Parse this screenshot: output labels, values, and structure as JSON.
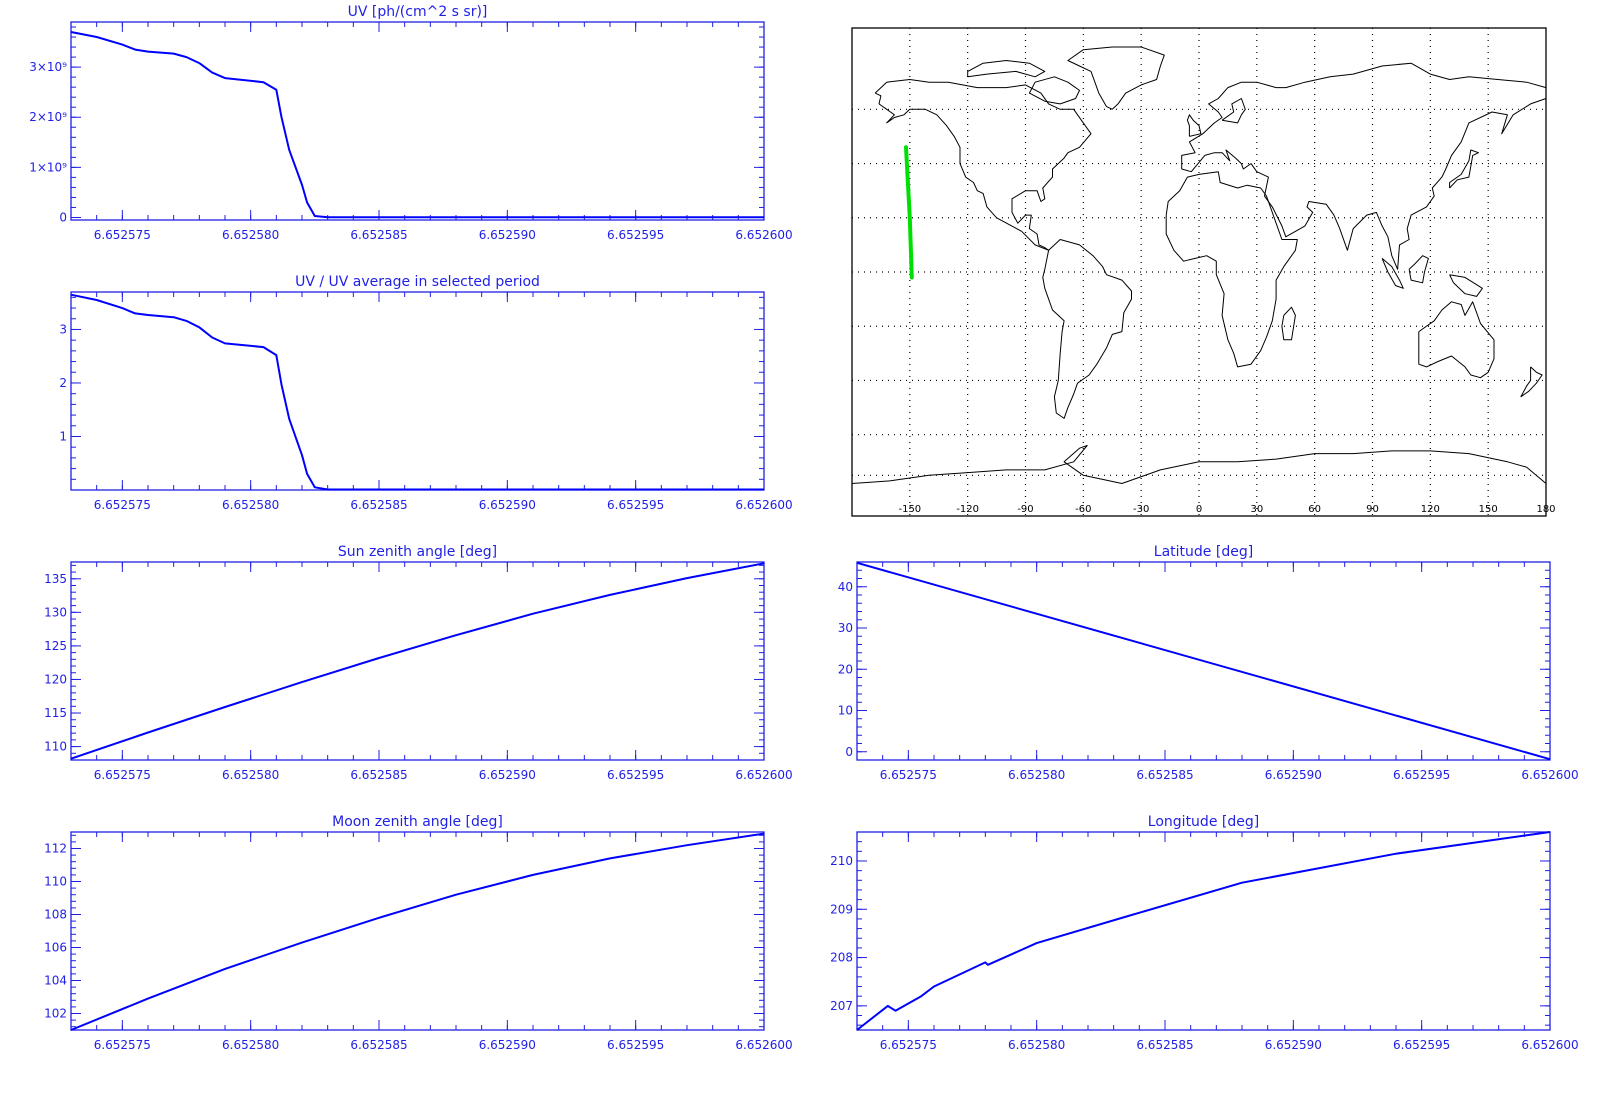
{
  "colors": {
    "axis": "#1f1fe6",
    "line": "#0000ff",
    "track": "#00e000",
    "map": "#000000"
  },
  "shared_x_ticks": [
    "6.652575",
    "6.652580",
    "6.652585",
    "6.652590",
    "6.652595",
    "6.652600"
  ],
  "chart_data": [
    {
      "id": "uv",
      "type": "line",
      "title": "UV [ph/(cm^2 s sr)]",
      "xlim": [
        6.652573,
        6.6526
      ],
      "ylim": [
        -50000000,
        3900000000
      ],
      "y_ticks": [
        {
          "v": 0,
          "l": "0"
        },
        {
          "v": 1000000000,
          "l": "1×10⁹"
        },
        {
          "v": 2000000000,
          "l": "2×10⁹"
        },
        {
          "v": 3000000000,
          "l": "3×10⁹"
        }
      ],
      "x": [
        6.652573,
        6.652574,
        6.652575,
        6.6525755,
        6.652576,
        6.652577,
        6.6525775,
        6.652578,
        6.6525785,
        6.652579,
        6.6525805,
        6.652581,
        6.6525812,
        6.6525815,
        6.652582,
        6.6525822,
        6.6525825,
        6.652583,
        6.6526
      ],
      "y": [
        3700000000,
        3600000000,
        3450000000,
        3350000000,
        3310000000,
        3270000000,
        3200000000,
        3080000000,
        2890000000,
        2780000000,
        2700000000,
        2550000000,
        2000000000,
        1350000000,
        650000000,
        300000000,
        30000000,
        5000000,
        5000000
      ]
    },
    {
      "id": "uv_ratio",
      "type": "line",
      "title": "UV / UV average in selected period",
      "xlim": [
        6.652573,
        6.6526
      ],
      "ylim": [
        0,
        3.7
      ],
      "y_ticks": [
        {
          "v": 1,
          "l": "1"
        },
        {
          "v": 2,
          "l": "2"
        },
        {
          "v": 3,
          "l": "3"
        }
      ],
      "x": [
        6.652573,
        6.652574,
        6.652575,
        6.6525755,
        6.652576,
        6.652577,
        6.6525775,
        6.652578,
        6.6525785,
        6.652579,
        6.6525805,
        6.652581,
        6.6525812,
        6.6525815,
        6.652582,
        6.6525822,
        6.6525825,
        6.652583,
        6.6526
      ],
      "y": [
        3.65,
        3.55,
        3.4,
        3.3,
        3.27,
        3.23,
        3.16,
        3.04,
        2.85,
        2.74,
        2.67,
        2.52,
        1.97,
        1.33,
        0.65,
        0.3,
        0.05,
        0.01,
        0.01
      ]
    },
    {
      "id": "sun_zenith",
      "type": "line",
      "title": "Sun zenith angle [deg]",
      "xlim": [
        6.652573,
        6.6526
      ],
      "ylim": [
        108,
        137.5
      ],
      "y_ticks": [
        {
          "v": 110,
          "l": "110"
        },
        {
          "v": 115,
          "l": "115"
        },
        {
          "v": 120,
          "l": "120"
        },
        {
          "v": 125,
          "l": "125"
        },
        {
          "v": 130,
          "l": "130"
        },
        {
          "v": 135,
          "l": "135"
        }
      ],
      "x": [
        6.652573,
        6.652576,
        6.652579,
        6.652582,
        6.652585,
        6.652588,
        6.652591,
        6.652594,
        6.652597,
        6.6526
      ],
      "y": [
        108.2,
        112.1,
        115.9,
        119.6,
        123.2,
        126.6,
        129.8,
        132.6,
        135.1,
        137.3
      ]
    },
    {
      "id": "latitude",
      "type": "line",
      "title": "Latitude [deg]",
      "xlim": [
        6.652573,
        6.6526
      ],
      "ylim": [
        -2,
        46
      ],
      "y_ticks": [
        {
          "v": 0,
          "l": "0"
        },
        {
          "v": 10,
          "l": "10"
        },
        {
          "v": 20,
          "l": "20"
        },
        {
          "v": 30,
          "l": "30"
        },
        {
          "v": 40,
          "l": "40"
        }
      ],
      "x": [
        6.652573,
        6.6526
      ],
      "y": [
        45.8,
        -1.8
      ]
    },
    {
      "id": "moon_zenith",
      "type": "line",
      "title": "Moon zenith angle [deg]",
      "xlim": [
        6.652573,
        6.6526
      ],
      "ylim": [
        101,
        113
      ],
      "y_ticks": [
        {
          "v": 102,
          "l": "102"
        },
        {
          "v": 104,
          "l": "104"
        },
        {
          "v": 106,
          "l": "106"
        },
        {
          "v": 108,
          "l": "108"
        },
        {
          "v": 110,
          "l": "110"
        },
        {
          "v": 112,
          "l": "112"
        }
      ],
      "x": [
        6.652573,
        6.652576,
        6.652579,
        6.652582,
        6.652585,
        6.652588,
        6.652591,
        6.652594,
        6.652597,
        6.6526
      ],
      "y": [
        101.0,
        102.9,
        104.7,
        106.3,
        107.8,
        109.2,
        110.4,
        111.4,
        112.2,
        112.9
      ]
    },
    {
      "id": "longitude",
      "type": "line",
      "title": "Longitude [deg]",
      "xlim": [
        6.652573,
        6.6526
      ],
      "ylim": [
        206.5,
        210.6
      ],
      "y_ticks": [
        {
          "v": 207,
          "l": "207"
        },
        {
          "v": 208,
          "l": "208"
        },
        {
          "v": 209,
          "l": "209"
        },
        {
          "v": 210,
          "l": "210"
        }
      ],
      "x": [
        6.652573,
        6.6525742,
        6.6525745,
        6.6525755,
        6.652576,
        6.652578,
        6.6525781,
        6.65258,
        6.6525835,
        6.652588,
        6.652594,
        6.6526
      ],
      "y": [
        206.5,
        207.0,
        206.9,
        207.2,
        207.4,
        207.9,
        207.85,
        208.3,
        208.85,
        209.55,
        210.15,
        210.6
      ]
    }
  ],
  "map": {
    "lon_ticks": [
      "-150",
      "-120",
      "-90",
      "-60",
      "-30",
      "0",
      "30",
      "60",
      "90",
      "120",
      "150",
      "180"
    ],
    "lon_values": [
      -150,
      -120,
      -90,
      -60,
      -30,
      0,
      30,
      60,
      90,
      120,
      150,
      180
    ],
    "lat_values": [
      -75,
      -60,
      -40,
      -20,
      0,
      20,
      40,
      60
    ],
    "track": [
      [
        -152,
        46
      ],
      [
        -150,
        20
      ],
      [
        -149,
        -2
      ]
    ]
  }
}
